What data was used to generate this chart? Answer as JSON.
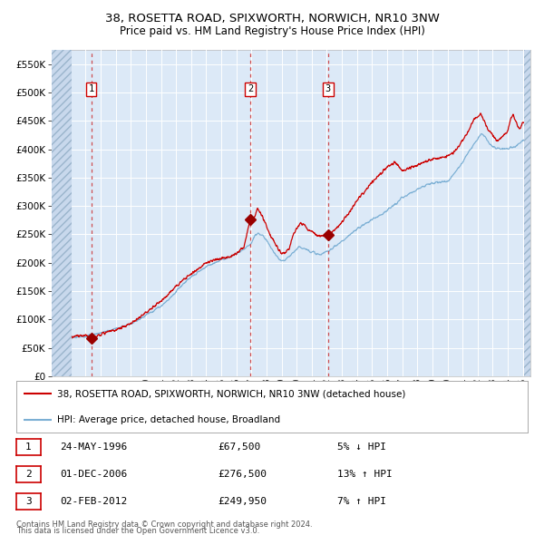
{
  "title1": "38, ROSETTA ROAD, SPIXWORTH, NORWICH, NR10 3NW",
  "title2": "Price paid vs. HM Land Registry's House Price Index (HPI)",
  "legend_line1": "38, ROSETTA ROAD, SPIXWORTH, NORWICH, NR10 3NW (detached house)",
  "legend_line2": "HPI: Average price, detached house, Broadland",
  "transactions": [
    {
      "num": 1,
      "date": "24-MAY-1996",
      "year": 1996.38,
      "price": 67500,
      "label": "5% ↓ HPI"
    },
    {
      "num": 2,
      "date": "01-DEC-2006",
      "year": 2006.92,
      "price": 276500,
      "label": "13% ↑ HPI"
    },
    {
      "num": 3,
      "date": "02-FEB-2012",
      "year": 2012.08,
      "price": 249950,
      "label": "7% ↑ HPI"
    }
  ],
  "footer1": "Contains HM Land Registry data © Crown copyright and database right 2024.",
  "footer2": "This data is licensed under the Open Government Licence v3.0.",
  "ylim": [
    0,
    575000
  ],
  "xlim_start": 1993.75,
  "xlim_end": 2025.5,
  "hatch_left_end": 1995.08,
  "hatch_right_start": 2025.08,
  "plot_bg": "#dce9f7",
  "hatch_bg": "#c8d8ec",
  "red_line_color": "#cc0000",
  "blue_line_color": "#7bafd4",
  "grid_color": "#ffffff",
  "dashed_line_color": "#cc3333",
  "yticks": [
    0,
    50000,
    100000,
    150000,
    200000,
    250000,
    300000,
    350000,
    400000,
    450000,
    500000,
    550000
  ]
}
